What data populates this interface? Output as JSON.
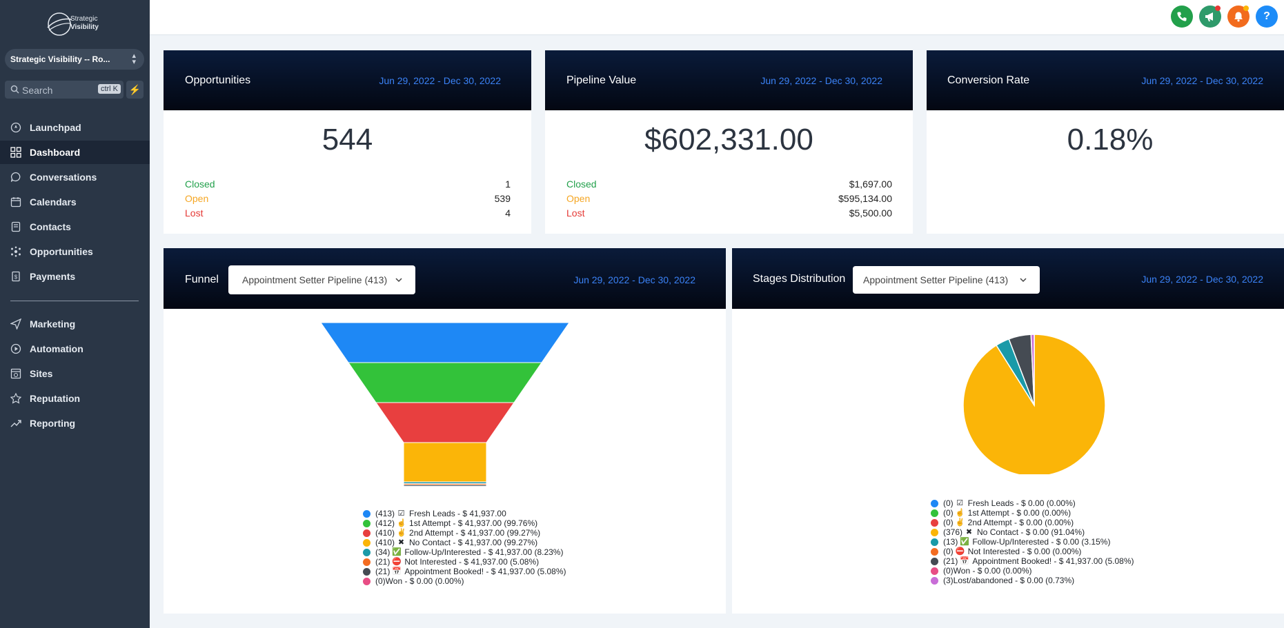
{
  "sidebar": {
    "logo_text_1": "Strategic",
    "logo_text_2": "Visibility",
    "location": "Strategic Visibility -- Ro...",
    "search_label": "Search",
    "search_kbd": "ctrl K",
    "items": [
      {
        "label": "Launchpad",
        "icon": "rocket-icon"
      },
      {
        "label": "Dashboard",
        "icon": "dashboard-grid-icon"
      },
      {
        "label": "Conversations",
        "icon": "chat-bubble-icon"
      },
      {
        "label": "Calendars",
        "icon": "calendar-icon"
      },
      {
        "label": "Contacts",
        "icon": "contacts-book-icon"
      },
      {
        "label": "Opportunities",
        "icon": "opportunities-network-icon"
      },
      {
        "label": "Payments",
        "icon": "invoice-icon"
      },
      {
        "label": "Marketing",
        "icon": "send-plane-icon"
      },
      {
        "label": "Automation",
        "icon": "automation-play-icon"
      },
      {
        "label": "Sites",
        "icon": "globe-window-icon"
      },
      {
        "label": "Reputation",
        "icon": "star-icon"
      },
      {
        "label": "Reporting",
        "icon": "trend-line-icon"
      }
    ]
  },
  "topbar": {
    "buttons": [
      {
        "icon": "phone-icon",
        "color": "#22a04b"
      },
      {
        "icon": "megaphone-icon",
        "color": "#2e9a6a"
      },
      {
        "icon": "bell-icon",
        "color": "#f26b1d"
      },
      {
        "icon": "help-icon",
        "color": "#1d8cf8",
        "glyph": "?"
      }
    ]
  },
  "cards": {
    "opportunities": {
      "title": "Opportunities",
      "date": "Jun 29, 2022 - Dec 30, 2022",
      "value": "544",
      "rows": [
        {
          "label": "Closed",
          "value": "1",
          "color": "#22a04b"
        },
        {
          "label": "Open",
          "value": "539",
          "color": "#f5a623"
        },
        {
          "label": "Lost",
          "value": "4",
          "color": "#e53935"
        }
      ]
    },
    "pipeline": {
      "title": "Pipeline Value",
      "date": "Jun 29, 2022 - Dec 30, 2022",
      "value": "$602,331.00",
      "rows": [
        {
          "label": "Closed",
          "value": "$1,697.00",
          "color": "#22a04b"
        },
        {
          "label": "Open",
          "value": "$595,134.00",
          "color": "#f5a623"
        },
        {
          "label": "Lost",
          "value": "$5,500.00",
          "color": "#e53935"
        }
      ]
    },
    "conversion": {
      "title": "Conversion Rate",
      "date": "Jun 29, 2022 - Dec 30, 2022",
      "value": "0.18%"
    },
    "funnel": {
      "title": "Funnel",
      "dropdown": "Appointment Setter Pipeline (413)",
      "date": "Jun 29, 2022 - Dec 30, 2022"
    },
    "stages": {
      "title": "Stages Distribution",
      "dropdown": "Appointment Setter Pipeline (413)",
      "date": "Jun 29, 2022 - Dec 30, 2022"
    }
  },
  "chart_data": [
    {
      "type": "funnel",
      "name": "Funnel",
      "stages": [
        {
          "count": 413,
          "emoji": "☑",
          "label": "(413) ",
          "text": "Fresh Leads - $ 41,937.00",
          "value": 413,
          "color": "#1e88f5"
        },
        {
          "count": 412,
          "emoji": "☝",
          "label": "(412) ",
          "text": "1st Attempt - $ 41,937.00 (99.76%)",
          "value": 412,
          "color": "#33c23a"
        },
        {
          "count": 410,
          "emoji": "✌",
          "label": "(410) ",
          "text": "2nd Attempt - $ 41,937.00 (99.27%)",
          "value": 410,
          "color": "#e83f3f"
        },
        {
          "count": 410,
          "emoji": "✖",
          "label": "(410) ",
          "text": "No Contact - $ 41,937.00 (99.27%)",
          "value": 410,
          "color": "#fbb508"
        },
        {
          "count": 34,
          "emoji": "✅",
          "label": "(34) ",
          "text": "Follow-Up/Interested - $ 41,937.00 (8.23%)",
          "value": 34,
          "color": "#1a9aa8"
        },
        {
          "count": 21,
          "emoji": "⛔",
          "label": "(21) ",
          "text": "Not Interested - $ 41,937.00 (5.08%)",
          "value": 21,
          "color": "#f36c21"
        },
        {
          "count": 21,
          "emoji": "📅",
          "label": "(21) ",
          "text": "Appointment Booked! - $ 41,937.00 (5.08%)",
          "value": 21,
          "color": "#454b53"
        },
        {
          "count": 0,
          "emoji": "",
          "label": "(0) ",
          "text": "Won - $ 0.00 (0.00%)",
          "value": 0,
          "color": "#e84d85"
        }
      ]
    },
    {
      "type": "pie",
      "name": "Stages Distribution",
      "slices": [
        {
          "label": "(0) ",
          "emoji": "☑",
          "text": "Fresh Leads - $ 0.00 (0.00%)",
          "value": 0,
          "color": "#1e88f5"
        },
        {
          "label": "(0) ",
          "emoji": "☝",
          "text": "1st Attempt - $ 0.00 (0.00%)",
          "value": 0,
          "color": "#33c23a"
        },
        {
          "label": "(0) ",
          "emoji": "✌",
          "text": "2nd Attempt - $ 0.00 (0.00%)",
          "value": 0,
          "color": "#e83f3f"
        },
        {
          "label": "(376) ",
          "emoji": "✖",
          "text": "No Contact - $ 0.00 (91.04%)",
          "value": 376,
          "color": "#fbb508"
        },
        {
          "label": "(13) ",
          "emoji": "✅",
          "text": "Follow-Up/Interested - $ 0.00 (3.15%)",
          "value": 13,
          "color": "#1a9aa8"
        },
        {
          "label": "(0) ",
          "emoji": "⛔",
          "text": "Not Interested - $ 0.00 (0.00%)",
          "value": 0,
          "color": "#f36c21"
        },
        {
          "label": "(21) ",
          "emoji": "📅",
          "text": "Appointment Booked! - $ 41,937.00 (5.08%)",
          "value": 21,
          "color": "#454b53"
        },
        {
          "label": "(0) ",
          "emoji": "",
          "text": "Won - $ 0.00 (0.00%)",
          "value": 0,
          "color": "#e84d85"
        },
        {
          "label": "(3) ",
          "emoji": "",
          "text": "Lost/abandoned - $ 0.00 (0.73%)",
          "value": 3,
          "color": "#c86dd7"
        }
      ]
    }
  ]
}
